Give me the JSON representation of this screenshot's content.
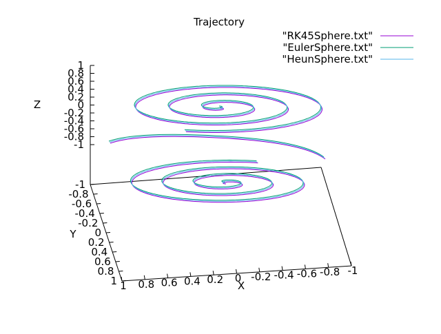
{
  "chart_data": {
    "type": "line",
    "title": "Trajectory",
    "xlabel": "X",
    "ylabel": "Y",
    "zlabel": "Z",
    "x_ticks": [
      "1",
      "0.8",
      "0.6",
      "0.4",
      "0.2",
      "0",
      "-0.2",
      "-0.4",
      "-0.6",
      "-0.8",
      "-1"
    ],
    "y_ticks": [
      "-1",
      "-0.8",
      "-0.6",
      "-0.4",
      "-0.2",
      "0",
      "0.2",
      "0.4",
      "0.6",
      "0.8",
      "1"
    ],
    "z_ticks": [
      "1",
      "0.8",
      "0.6",
      "0.4",
      "0.2",
      "0",
      "-0.2",
      "-0.4",
      "-0.6",
      "-0.8",
      "-1"
    ],
    "xlim": [
      -1,
      1
    ],
    "ylim": [
      -1,
      1
    ],
    "zlim": [
      -1,
      1
    ],
    "legend_position": "top-right",
    "grid": false,
    "series": [
      {
        "name": "\"RK45Sphere.txt\"",
        "color": "#9400d3"
      },
      {
        "name": "\"EulerSphere.txt\"",
        "color": "#009e73"
      },
      {
        "name": "\"HeunSphere.txt\"",
        "color": "#56b4e9"
      }
    ]
  }
}
